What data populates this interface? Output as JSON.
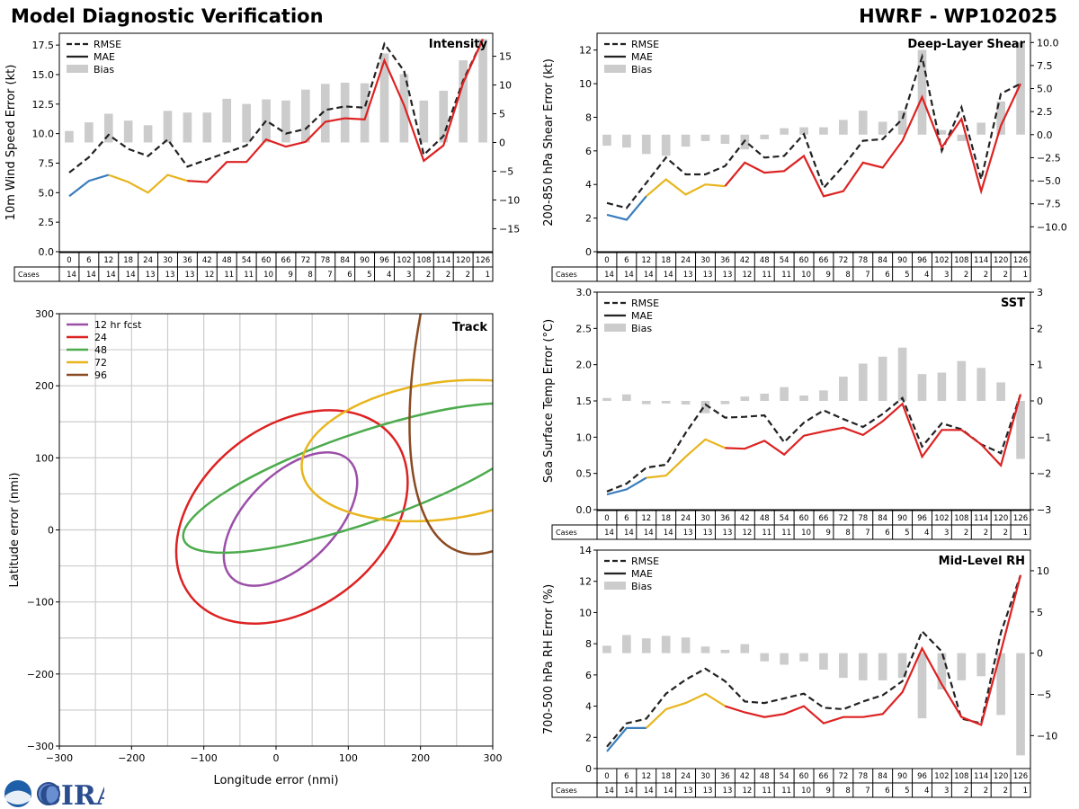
{
  "header": {
    "title_left": "Model Diagnostic Verification",
    "title_right": "HWRF - WP102025"
  },
  "logo": {
    "text": "CIRA",
    "badge": "NOAA"
  },
  "colors": {
    "mae_0_6": "#3a7dbd",
    "mae_6_36": "#e8b51e",
    "mae_36_plus": "#dd2222",
    "rmse": "#222222",
    "bias": "#cccccc",
    "grid": "#cccccc"
  },
  "legend_labels": {
    "rmse": "RMSE",
    "mae": "MAE",
    "bias": "Bias"
  },
  "cases_label": "Cases",
  "chart_data": [
    {
      "id": "intensity",
      "type": "line",
      "title": "Intensity",
      "ylabel": "10m Wind Speed Error (kt)",
      "ylim": [
        0,
        18.5
      ],
      "yticks": [
        "0.0",
        "2.5",
        "5.0",
        "7.5",
        "10.0",
        "12.5",
        "15.0",
        "17.5"
      ],
      "y2lim": [
        -19,
        19
      ],
      "y2ticks": [
        "−15",
        "−10",
        "−5",
        "0",
        "5",
        "10",
        "15"
      ],
      "x": [
        0,
        6,
        12,
        18,
        24,
        30,
        36,
        42,
        48,
        54,
        60,
        66,
        72,
        78,
        84,
        90,
        96,
        102,
        108,
        114,
        120,
        126
      ],
      "cases": [
        14,
        14,
        14,
        14,
        13,
        13,
        13,
        12,
        11,
        11,
        10,
        9,
        8,
        7,
        6,
        5,
        4,
        3,
        2,
        2,
        2,
        1
      ],
      "rmse": [
        6.7,
        8.0,
        9.9,
        8.7,
        8.1,
        9.5,
        7.2,
        7.8,
        8.4,
        9.0,
        11.1,
        10.0,
        10.4,
        12.0,
        12.3,
        12.2,
        17.6,
        15.3,
        8.2,
        9.8,
        14.5,
        18.0
      ],
      "mae": [
        4.7,
        6.0,
        6.5,
        5.9,
        5.0,
        6.5,
        6.0,
        5.9,
        7.6,
        7.6,
        9.5,
        8.9,
        9.3,
        11.0,
        11.3,
        11.2,
        16.2,
        12.4,
        7.7,
        9.0,
        14.3,
        18.0
      ],
      "bias": [
        2.0,
        3.5,
        5.0,
        3.8,
        3.0,
        5.5,
        5.2,
        5.2,
        7.6,
        6.7,
        7.5,
        7.3,
        9.2,
        10.2,
        10.4,
        10.3,
        15.5,
        11.9,
        7.3,
        9.0,
        14.3,
        18.0
      ]
    },
    {
      "id": "shear",
      "type": "line",
      "title": "Deep-Layer Shear",
      "ylabel": "200-850 hPa Shear Error (kt)",
      "ylim": [
        0,
        13
      ],
      "yticks": [
        "0",
        "2",
        "4",
        "6",
        "8",
        "10",
        "12"
      ],
      "y2lim": [
        -12.7,
        11.0
      ],
      "y2ticks": [
        "−10.0",
        "−7.5",
        "−5.0",
        "−2.5",
        "0.0",
        "2.5",
        "5.0",
        "7.5",
        "10.0"
      ],
      "x": [
        0,
        6,
        12,
        18,
        24,
        30,
        36,
        42,
        48,
        54,
        60,
        66,
        72,
        78,
        84,
        90,
        96,
        102,
        108,
        114,
        120,
        126
      ],
      "cases": [
        14,
        14,
        14,
        14,
        13,
        13,
        13,
        12,
        11,
        11,
        10,
        9,
        8,
        7,
        6,
        5,
        4,
        3,
        2,
        2,
        2,
        1
      ],
      "rmse": [
        2.9,
        2.6,
        4.1,
        5.6,
        4.6,
        4.6,
        5.1,
        6.6,
        5.6,
        5.7,
        7.0,
        3.8,
        5.1,
        6.6,
        6.7,
        7.9,
        11.6,
        6.0,
        8.6,
        4.3,
        9.4,
        10.0
      ],
      "mae": [
        2.2,
        1.9,
        3.3,
        4.3,
        3.4,
        4.0,
        3.9,
        5.3,
        4.7,
        4.8,
        5.7,
        3.3,
        3.6,
        5.3,
        5.0,
        6.6,
        9.2,
        6.2,
        7.9,
        3.6,
        7.5,
        10.0
      ],
      "bias": [
        -1.2,
        -1.4,
        -2.1,
        -2.3,
        -1.3,
        -0.7,
        -1.0,
        -1.6,
        -0.5,
        0.7,
        0.8,
        0.8,
        1.6,
        2.6,
        1.4,
        2.6,
        9.2,
        0.5,
        -0.7,
        1.3,
        3.6,
        10.0
      ]
    },
    {
      "id": "sst",
      "type": "line",
      "title": "SST",
      "ylabel": "Sea Surface Temp Error (°C)",
      "ylim": [
        0,
        3
      ],
      "yticks": [
        "0.0",
        "0.5",
        "1.0",
        "1.5",
        "2.0",
        "2.5",
        "3.0"
      ],
      "y2lim": [
        -3,
        3
      ],
      "y2ticks": [
        "−3",
        "−2",
        "−1",
        "0",
        "1",
        "2",
        "3"
      ],
      "x": [
        0,
        6,
        12,
        18,
        24,
        30,
        36,
        42,
        48,
        54,
        60,
        66,
        72,
        78,
        84,
        90,
        96,
        102,
        108,
        114,
        120,
        126
      ],
      "cases": [
        14,
        14,
        14,
        14,
        13,
        13,
        13,
        12,
        11,
        11,
        10,
        9,
        8,
        7,
        6,
        5,
        4,
        3,
        2,
        2,
        2,
        1
      ],
      "rmse": [
        0.25,
        0.36,
        0.58,
        0.62,
        1.06,
        1.45,
        1.27,
        1.28,
        1.3,
        0.93,
        1.2,
        1.37,
        1.25,
        1.14,
        1.32,
        1.54,
        0.87,
        1.19,
        1.11,
        0.9,
        0.78,
        1.59
      ],
      "mae": [
        0.21,
        0.28,
        0.44,
        0.47,
        0.73,
        0.97,
        0.85,
        0.84,
        0.95,
        0.76,
        1.02,
        1.08,
        1.13,
        1.03,
        1.22,
        1.46,
        0.73,
        1.1,
        1.1,
        0.9,
        0.61,
        1.59
      ],
      "bias": [
        0.08,
        0.18,
        -0.09,
        -0.07,
        -0.1,
        -0.34,
        -0.09,
        0.12,
        0.2,
        0.38,
        0.15,
        0.29,
        0.67,
        1.03,
        1.22,
        1.47,
        0.74,
        0.78,
        1.1,
        0.91,
        0.51,
        -1.6
      ]
    },
    {
      "id": "rh",
      "type": "line",
      "title": "Mid-Level RH",
      "ylabel": "700-500 hPa RH Error (%)",
      "ylim": [
        0,
        14
      ],
      "yticks": [
        "0",
        "2",
        "4",
        "6",
        "8",
        "10",
        "12",
        "14"
      ],
      "y2lim": [
        -14,
        12.5
      ],
      "y2ticks": [
        "−10",
        "−5",
        "0",
        "5",
        "10"
      ],
      "x": [
        0,
        6,
        12,
        18,
        24,
        30,
        36,
        42,
        48,
        54,
        60,
        66,
        72,
        78,
        84,
        90,
        96,
        102,
        108,
        114,
        120,
        126
      ],
      "cases": [
        14,
        14,
        14,
        14,
        13,
        13,
        13,
        12,
        11,
        11,
        10,
        9,
        8,
        7,
        6,
        5,
        4,
        3,
        2,
        2,
        2,
        1
      ],
      "rmse": [
        1.4,
        2.9,
        3.2,
        4.8,
        5.7,
        6.4,
        5.6,
        4.3,
        4.2,
        4.5,
        4.8,
        3.9,
        3.8,
        4.3,
        4.7,
        5.6,
        8.8,
        7.5,
        3.2,
        2.9,
        8.7,
        12.4
      ],
      "mae": [
        1.1,
        2.6,
        2.6,
        3.8,
        4.2,
        4.8,
        4.0,
        3.6,
        3.3,
        3.5,
        4.0,
        2.9,
        3.3,
        3.3,
        3.5,
        4.9,
        7.7,
        5.4,
        3.3,
        2.8,
        7.5,
        12.4
      ],
      "bias": [
        0.9,
        2.2,
        1.8,
        2.1,
        1.9,
        0.8,
        0.4,
        1.1,
        -1.0,
        -1.4,
        -1.0,
        -2.0,
        -3.0,
        -3.3,
        -3.3,
        -3.0,
        -7.9,
        -4.4,
        -3.3,
        -2.8,
        -7.5,
        -12.4
      ]
    },
    {
      "id": "track",
      "type": "scatter",
      "title": "Track",
      "xlabel": "Longitude error (nmi)",
      "ylabel": "Latitude error (nmi)",
      "xlim": [
        -300,
        300
      ],
      "ylim": [
        -300,
        300
      ],
      "xticks": [
        "−300",
        "−200",
        "−100",
        "0",
        "100",
        "200",
        "300"
      ],
      "yticks": [
        "−300",
        "−200",
        "−100",
        "0",
        "100",
        "200",
        "300"
      ],
      "series": [
        {
          "name": "12 hr fcst",
          "color": "#9b4fa8",
          "cx": 20,
          "cy": 15,
          "a": 115,
          "b": 62,
          "angle": 45
        },
        {
          "name": "24",
          "color": "#dd2222",
          "cx": 22,
          "cy": 18,
          "a": 178,
          "b": 126,
          "angle": 38
        },
        {
          "name": "48",
          "color": "#4cab4c",
          "cx": 120,
          "cy": 72,
          "a": 262,
          "b": 62,
          "angle": 19
        },
        {
          "name": "72",
          "color": "#e8b51e",
          "cx": 232,
          "cy": 110,
          "a": 198,
          "b": 95,
          "angle": 8
        },
        {
          "name": "96",
          "color": "#8a4a22",
          "cx": 430,
          "cy": 460,
          "a": 520,
          "b": 180,
          "angle": 70
        }
      ]
    }
  ]
}
